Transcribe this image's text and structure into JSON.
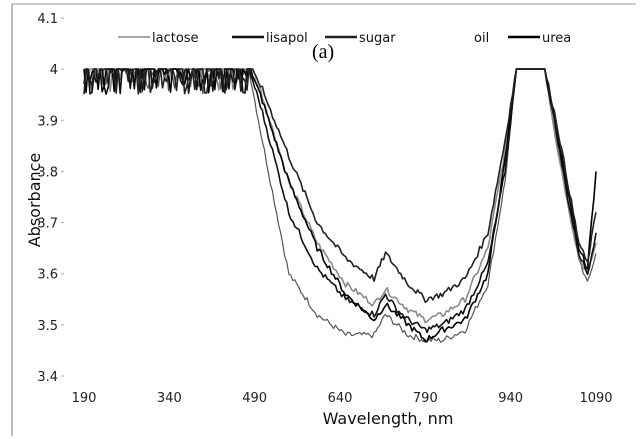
{
  "chart_data": {
    "type": "line",
    "panel_label": "(a)",
    "xlabel": "Wavelength, nm",
    "ylabel": "Absorbance",
    "xlim": [
      190,
      1090
    ],
    "ylim": [
      3.4,
      4.1
    ],
    "x_ticks": [
      "190",
      "340",
      "490",
      "640",
      "790",
      "940",
      "1090"
    ],
    "y_ticks": [
      "3.4",
      "3.5",
      "3.6",
      "3.7",
      "3.8",
      "3.9",
      "4",
      "4.1"
    ],
    "grid": false,
    "legend_position": "top",
    "series": [
      {
        "name": "lactose",
        "color": "#8a8a8a",
        "x": [
          190,
          480,
          500,
          550,
          600,
          650,
          700,
          720,
          740,
          760,
          790,
          820,
          860,
          900,
          930,
          950,
          960,
          1000,
          1020,
          1040,
          1060,
          1075,
          1090
        ],
        "y": [
          4.0,
          4.0,
          3.96,
          3.78,
          3.66,
          3.58,
          3.54,
          3.57,
          3.55,
          3.53,
          3.51,
          3.52,
          3.55,
          3.65,
          3.84,
          4.0,
          4.0,
          4.0,
          3.86,
          3.74,
          3.63,
          3.6,
          3.66
        ]
      },
      {
        "name": "lisapol",
        "color": "#111111",
        "x": [
          190,
          480,
          500,
          550,
          600,
          650,
          700,
          720,
          740,
          760,
          790,
          820,
          860,
          900,
          930,
          950,
          960,
          1000,
          1020,
          1040,
          1060,
          1075,
          1090
        ],
        "y": [
          4.0,
          4.0,
          3.93,
          3.72,
          3.61,
          3.55,
          3.52,
          3.56,
          3.53,
          3.51,
          3.49,
          3.5,
          3.53,
          3.62,
          3.8,
          4.0,
          4.0,
          4.0,
          3.88,
          3.75,
          3.64,
          3.6,
          3.68
        ]
      },
      {
        "name": "sugar",
        "color": "#222222",
        "x": [
          190,
          480,
          500,
          550,
          600,
          650,
          700,
          720,
          740,
          760,
          790,
          820,
          860,
          900,
          930,
          950,
          960,
          1000,
          1020,
          1040,
          1060,
          1075,
          1090
        ],
        "y": [
          4.0,
          4.0,
          3.97,
          3.83,
          3.7,
          3.63,
          3.59,
          3.64,
          3.61,
          3.58,
          3.55,
          3.56,
          3.59,
          3.68,
          3.86,
          4.0,
          4.0,
          4.0,
          3.9,
          3.78,
          3.66,
          3.62,
          3.72
        ]
      },
      {
        "name": "oil",
        "color": "#555555",
        "x": [
          190,
          480,
          500,
          550,
          600,
          650,
          700,
          720,
          740,
          760,
          790,
          820,
          860,
          900,
          930,
          950,
          960,
          1000,
          1020,
          1040,
          1060,
          1075,
          1090
        ],
        "y": [
          4.0,
          4.0,
          3.88,
          3.6,
          3.52,
          3.48,
          3.48,
          3.52,
          3.5,
          3.48,
          3.47,
          3.47,
          3.49,
          3.58,
          3.78,
          4.0,
          4.0,
          4.0,
          3.87,
          3.74,
          3.63,
          3.58,
          3.64
        ]
      },
      {
        "name": "urea",
        "color": "#000000",
        "x": [
          190,
          480,
          500,
          550,
          600,
          650,
          700,
          720,
          740,
          760,
          790,
          820,
          860,
          900,
          930,
          950,
          960,
          1000,
          1020,
          1040,
          1060,
          1075,
          1090
        ],
        "y": [
          4.0,
          4.0,
          3.95,
          3.78,
          3.65,
          3.56,
          3.51,
          3.54,
          3.52,
          3.5,
          3.47,
          3.49,
          3.51,
          3.6,
          3.82,
          4.0,
          4.0,
          4.0,
          3.89,
          3.76,
          3.65,
          3.61,
          3.8
        ]
      }
    ]
  }
}
